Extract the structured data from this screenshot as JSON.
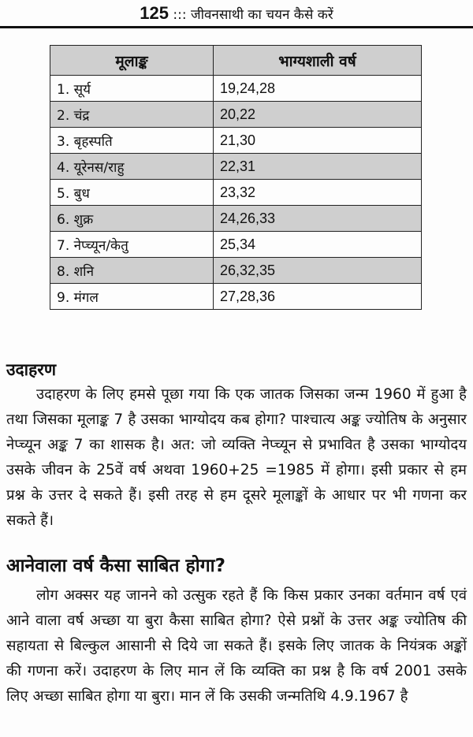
{
  "header": {
    "page_number": "125",
    "separator": ":::",
    "title": "जीवनसाथी का चयन कैसे करें"
  },
  "table": {
    "headers": [
      "मूलाङ्क",
      "भाग्यशाली वर्ष"
    ],
    "rows": [
      {
        "planet": "1. सूर्य",
        "years": "19,24,28"
      },
      {
        "planet": "2. चंद्र",
        "years": "20,22"
      },
      {
        "planet": "3. बृहस्पति",
        "years": "21,30"
      },
      {
        "planet": "4. यूरेनस/राहु",
        "years": "22,31"
      },
      {
        "planet": "5. बुध",
        "years": "23,32"
      },
      {
        "planet": "6. शुक्र",
        "years": "24,26,33"
      },
      {
        "planet": "7. नेप्च्यून/केतु",
        "years": "25,34"
      },
      {
        "planet": "8. शनि",
        "years": "26,32,35"
      },
      {
        "planet": "9. मंगल",
        "years": "27,28,36"
      }
    ]
  },
  "section1": {
    "heading": "उदाहरण",
    "text": "उदाहरण के लिए हमसे पूछा गया कि एक जातक जिसका जन्म 1960 में हुआ है तथा जिसका मूलाङ्क 7 है उसका भाग्योदय कब होगा? पाश्चात्य अङ्क  ज्योतिष के अनुसार नेप्च्यून अङ्क 7 का शासक है। अत: जो व्यक्ति नेप्च्यून से प्रभावित है उसका भाग्योदय उसके जीवन के 25वें वर्ष अथवा 1960+25 =1985 में होगा। इसी प्रकार से हम प्रश्न के उत्तर दे सकते हैं। इसी तरह से हम दूसरे मूलाङ्कों के आधार पर भी गणना कर सकते हैं।"
  },
  "section2": {
    "heading": "आनेवाला वर्ष कैसा साबित होगा?",
    "text": "लोग अक्सर यह जानने को उत्सुक रहते हैं कि किस प्रकार उनका वर्तमान वर्ष एवं आने वाला वर्ष अच्छा या बुरा कैसा साबित होगा? ऐसे प्रश्नों के उत्तर अङ्क ज्योतिष की सहायता से बिल्कुल आसानी से दिये जा सकते हैं। इसके लिए जातक के नियंत्रक अङ्कों की गणना करें। उदाहरण के लिए मान लें कि व्यक्ति का प्रश्न है कि वर्ष 2001 उसके लिए अच्छा साबित होगा या बुरा। मान लें कि उसकी जन्मतिथि 4.9.1967 है"
  }
}
